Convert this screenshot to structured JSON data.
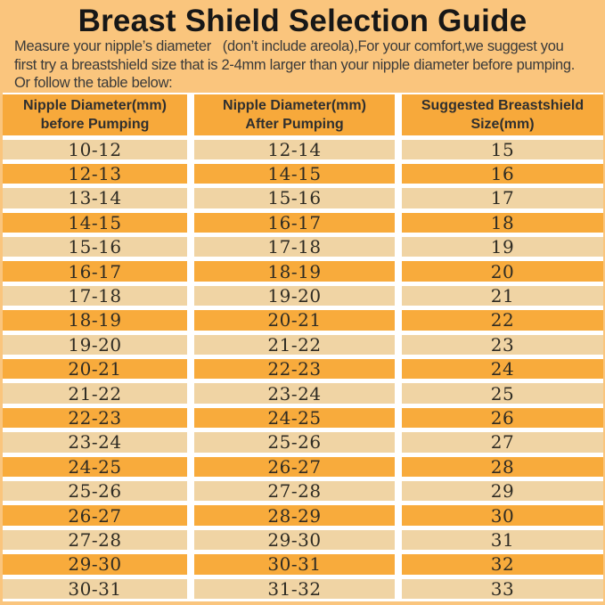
{
  "page": {
    "title": "Breast Shield Selection Guide",
    "intro_lines": [
      "Measure your nipple’s diameter   (don’t include areola),For your comfort,we suggest you",
      "first try a breastshield size that is 2-4mm larger than your nipple diameter before pumping.",
      "Or follow the table below:"
    ]
  },
  "colors": {
    "page_background": "#FAC57D",
    "header_and_dark_row": "#F8AB3C",
    "light_row": "#F0D4A4",
    "divider": "#FFFFFF",
    "title_text": "#171717",
    "body_text": "#3A3A3A"
  },
  "table": {
    "headers": [
      {
        "line1": "Nipple Diameter(mm)",
        "line2": "before Pumping"
      },
      {
        "line1": "Nipple Diameter(mm)",
        "line2": "After Pumping"
      },
      {
        "line1": "Suggested Breastshield",
        "line2": "Size(mm)"
      }
    ],
    "rows": [
      [
        "10-12",
        "12-14",
        "15"
      ],
      [
        "12-13",
        "14-15",
        "16"
      ],
      [
        "13-14",
        "15-16",
        "17"
      ],
      [
        "14-15",
        "16-17",
        "18"
      ],
      [
        "15-16",
        "17-18",
        "19"
      ],
      [
        "16-17",
        "18-19",
        "20"
      ],
      [
        "17-18",
        "19-20",
        "21"
      ],
      [
        "18-19",
        "20-21",
        "22"
      ],
      [
        "19-20",
        "21-22",
        "23"
      ],
      [
        "20-21",
        "22-23",
        "24"
      ],
      [
        "21-22",
        "23-24",
        "25"
      ],
      [
        "22-23",
        "24-25",
        "26"
      ],
      [
        "23-24",
        "25-26",
        "27"
      ],
      [
        "24-25",
        "26-27",
        "28"
      ],
      [
        "25-26",
        "27-28",
        "29"
      ],
      [
        "26-27",
        "28-29",
        "30"
      ],
      [
        "27-28",
        "29-30",
        "31"
      ],
      [
        "29-30",
        "30-31",
        "32"
      ],
      [
        "30-31",
        "31-32",
        "33"
      ]
    ]
  }
}
